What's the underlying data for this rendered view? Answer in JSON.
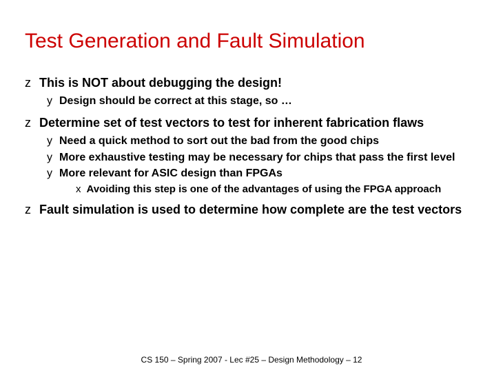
{
  "title": "Test Generation and Fault Simulation",
  "bullets": {
    "b1": {
      "marker": "z",
      "text": "This is NOT about debugging the design!"
    },
    "b1_1": {
      "marker": "y",
      "text": "Design should be correct at this stage, so …"
    },
    "b2": {
      "marker": "z",
      "text": "Determine set of test vectors to test for inherent fabrication flaws"
    },
    "b2_1": {
      "marker": "y",
      "text": "Need a quick method to sort out the bad from the good chips"
    },
    "b2_2": {
      "marker": "y",
      "text": "More exhaustive testing may be necessary for chips that pass the first level"
    },
    "b2_3": {
      "marker": "y",
      "text": "More relevant for ASIC design than FPGAs"
    },
    "b2_3_1": {
      "marker": "x",
      "text": "Avoiding this step is one of the advantages of using the FPGA approach"
    },
    "b3": {
      "marker": "z",
      "text": "Fault simulation is used to determine how complete are the test vectors"
    }
  },
  "footer": "CS 150 – Spring  2007 - Lec #25 – Design Methodology  – 12",
  "colors": {
    "title": "#cc0000",
    "text": "#000000",
    "background": "#ffffff"
  }
}
